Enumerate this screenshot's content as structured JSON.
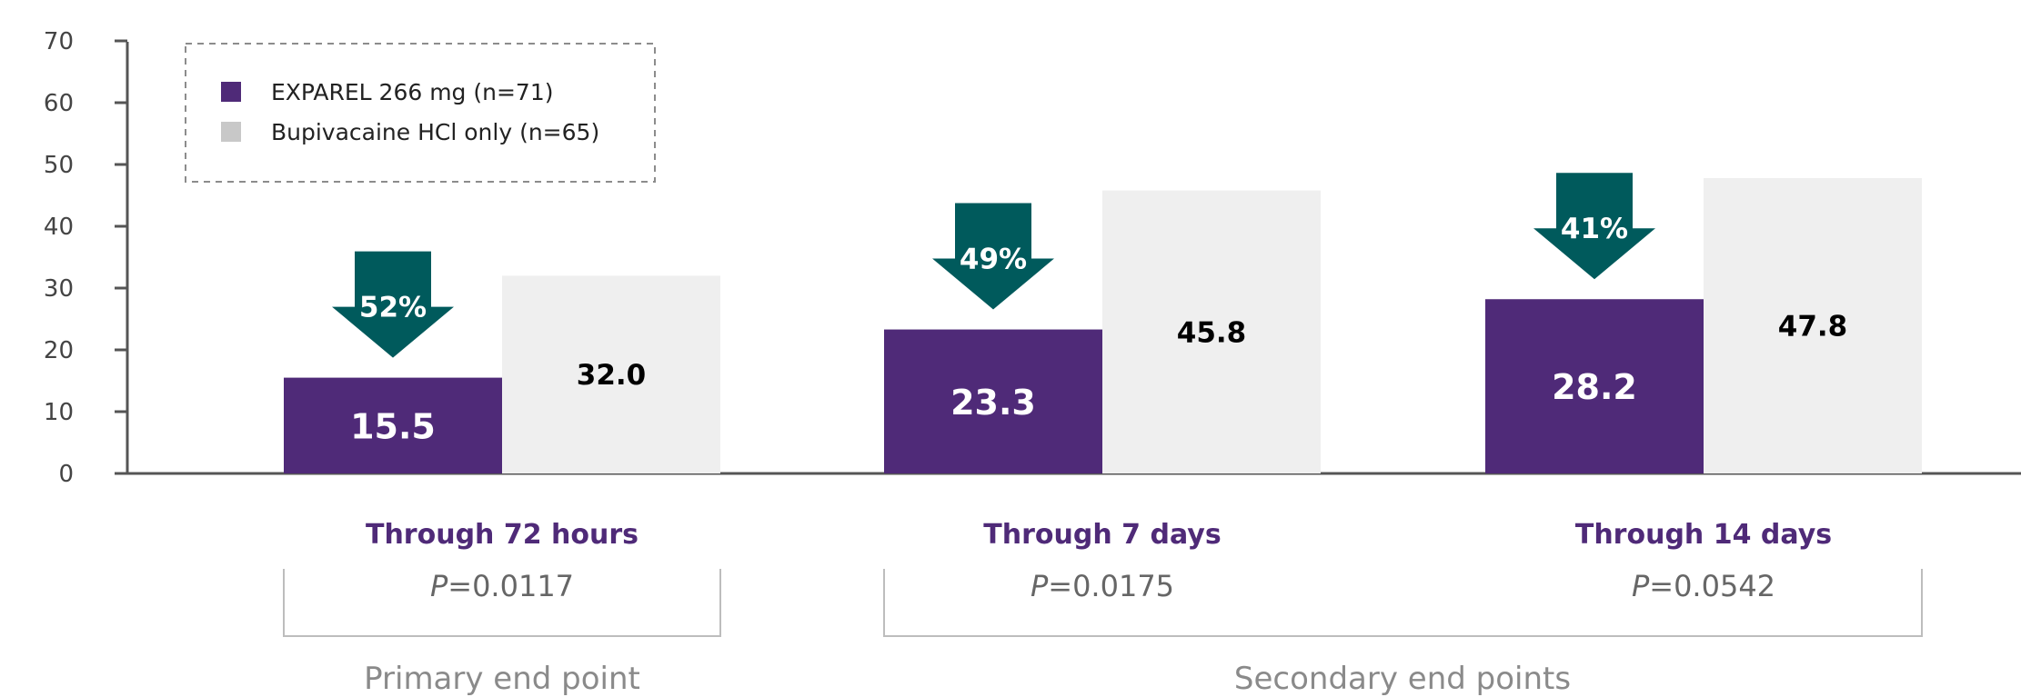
{
  "colors": {
    "exparel": "#4f2a78",
    "bupivacaine_bar": "#efefef",
    "bupivacaine_legend": "#c8c8c8",
    "arrow": "#005a5c",
    "category_text": "#4f2a78",
    "axis": "#555555",
    "bracket": "#bdbdbd"
  },
  "chart_data": {
    "type": "bar",
    "ylim": [
      0,
      70
    ],
    "yticks": [
      "0",
      "10",
      "20",
      "30",
      "40",
      "50",
      "60",
      "70"
    ],
    "categories": [
      "Through 72 hours",
      "Through 7 days",
      "Through 14 days"
    ],
    "series": [
      {
        "name": "EXPAREL 266 mg (n=71)",
        "values": [
          15.5,
          23.3,
          28.2
        ],
        "labels": [
          "15.5",
          "23.3",
          "28.2"
        ]
      },
      {
        "name": "Bupivacaine HCl only (n=65)",
        "values": [
          32.0,
          45.8,
          47.8
        ],
        "labels": [
          "32.0",
          "45.8",
          "47.8"
        ]
      }
    ],
    "reductions": [
      "52%",
      "49%",
      "41%"
    ],
    "p_values": [
      {
        "prefix": "P",
        "value": "=0.0117"
      },
      {
        "prefix": "P",
        "value": "=0.0175"
      },
      {
        "prefix": "P",
        "value": "=0.0542"
      }
    ],
    "endpoint_groups": [
      "Primary end point",
      "Secondary end points"
    ],
    "legend_position": "top-left",
    "grid": false
  }
}
